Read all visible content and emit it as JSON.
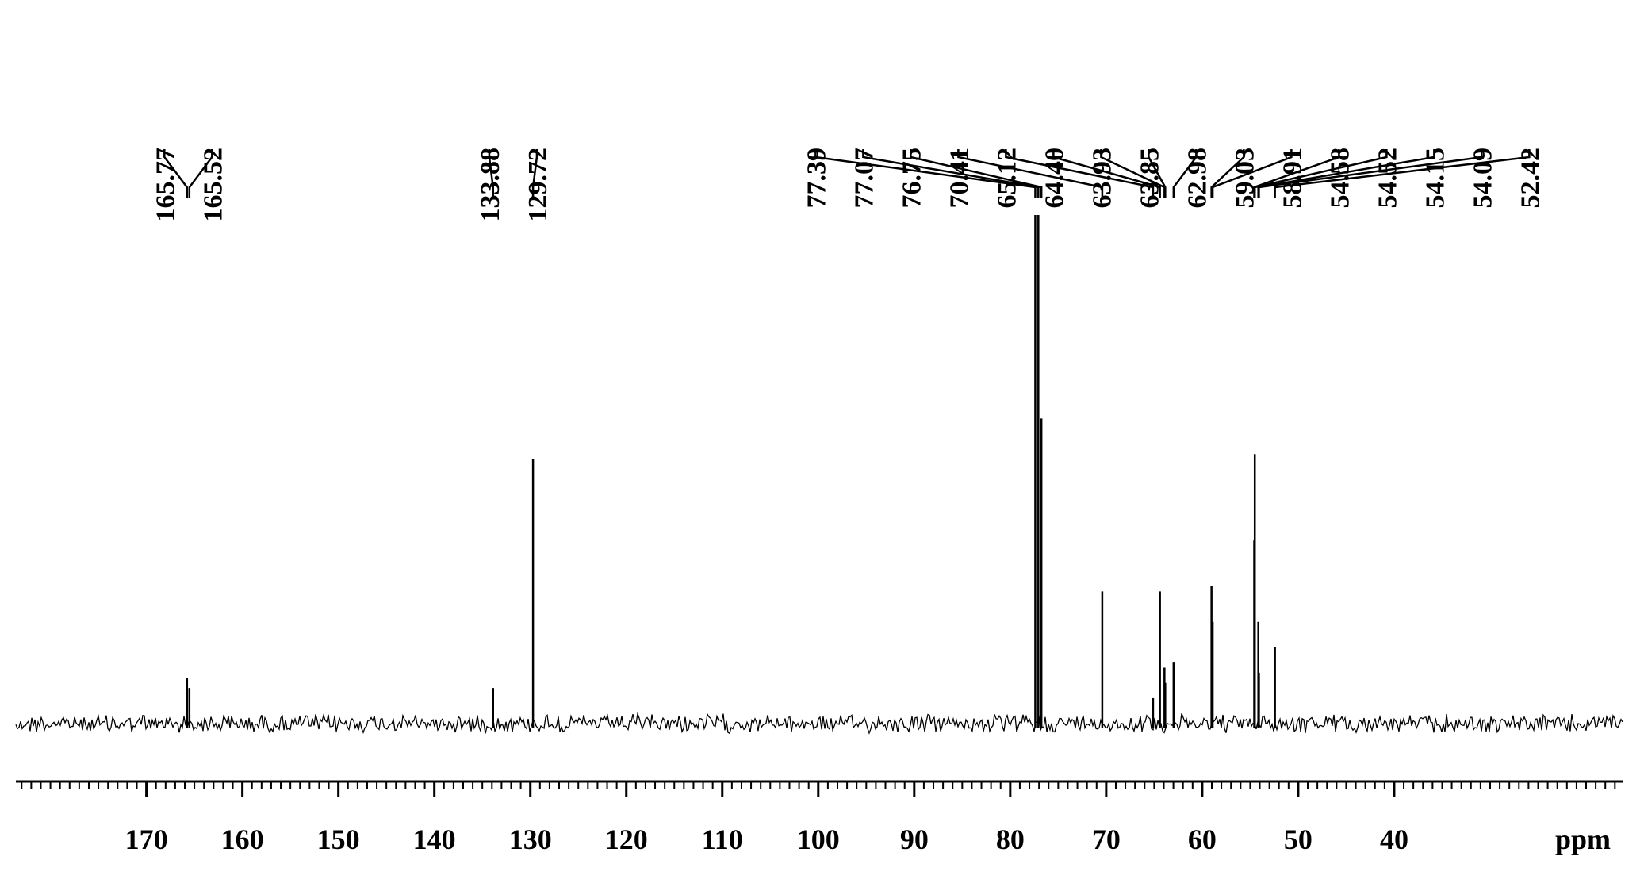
{
  "chart_data": {
    "type": "spectrum",
    "x_label": "ppm",
    "xlim": [
      183.6,
      16.2
    ],
    "ylim": [
      0,
      100
    ],
    "xticks": [
      170,
      160,
      150,
      140,
      130,
      120,
      110,
      100,
      90,
      80,
      70,
      60,
      50,
      40
    ],
    "minor_tick_interval": 1,
    "color": "#000000",
    "peaks": [
      {
        "ppm": 165.77,
        "label": "165.77",
        "height": 9
      },
      {
        "ppm": 165.52,
        "label": "165.52",
        "height": 7
      },
      {
        "ppm": 133.88,
        "label": "133.88",
        "height": 7
      },
      {
        "ppm": 129.72,
        "label": "129.72",
        "height": 52
      },
      {
        "ppm": 77.39,
        "label": "77.39",
        "height": 100
      },
      {
        "ppm": 77.07,
        "label": "77.07",
        "height": 100
      },
      {
        "ppm": 76.75,
        "label": "76.75",
        "height": 60
      },
      {
        "ppm": 70.41,
        "label": "70.41",
        "height": 26
      },
      {
        "ppm": 65.12,
        "label": "65.12",
        "height": 5
      },
      {
        "ppm": 64.4,
        "label": "64.40",
        "height": 26
      },
      {
        "ppm": 63.93,
        "label": "63.93",
        "height": 11
      },
      {
        "ppm": 63.85,
        "label": "63.85",
        "height": 8
      },
      {
        "ppm": 62.98,
        "label": "62.98",
        "height": 12
      },
      {
        "ppm": 59.03,
        "label": "59.03",
        "height": 27
      },
      {
        "ppm": 58.91,
        "label": "58.91",
        "height": 20
      },
      {
        "ppm": 54.58,
        "label": "54.58",
        "height": 36
      },
      {
        "ppm": 54.52,
        "label": "54.52",
        "height": 53
      },
      {
        "ppm": 54.15,
        "label": "54.15",
        "height": 20
      },
      {
        "ppm": 54.09,
        "label": "54.09",
        "height": 10
      },
      {
        "ppm": 52.42,
        "label": "52.42",
        "height": 15
      }
    ]
  }
}
